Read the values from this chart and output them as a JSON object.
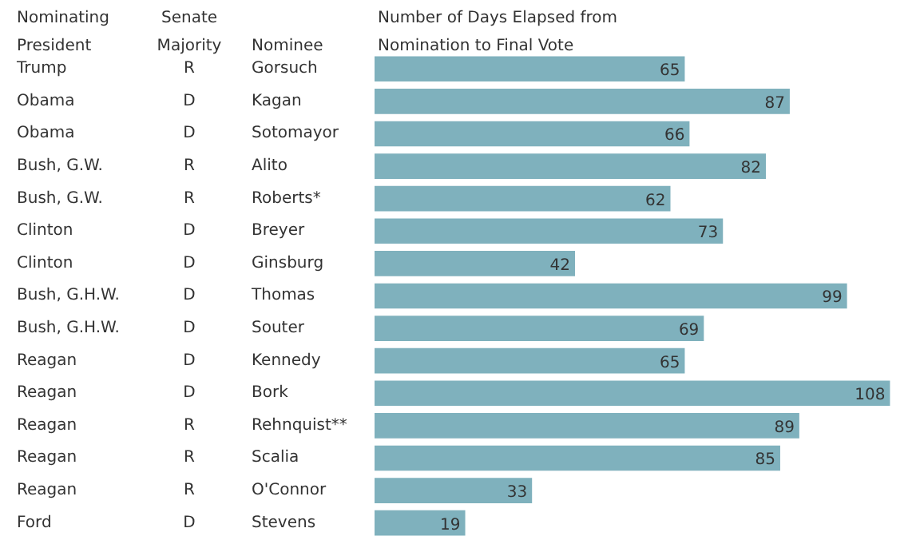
{
  "chart_data": {
    "type": "bar",
    "orientation": "horizontal",
    "ylabel": "Nominee",
    "xlabel": "Number of Days Elapsed from Nomination to Final Vote",
    "categories": [
      "Gorsuch",
      "Kagan",
      "Sotomayor",
      "Alito",
      "Roberts*",
      "Breyer",
      "Ginsburg",
      "Thomas",
      "Souter",
      "Kennedy",
      "Bork",
      "Rehnquist**",
      "Scalia",
      "O'Connor",
      "Stevens"
    ],
    "values": [
      65,
      87,
      66,
      82,
      62,
      73,
      42,
      99,
      69,
      65,
      108,
      89,
      85,
      33,
      19
    ],
    "color": "#7fb1bd",
    "data_labels": true,
    "grid": false,
    "annotations": [
      "Nominating President",
      "Senate Majority",
      "Trump",
      "R",
      "Obama",
      "D",
      "Obama",
      "D",
      "Bush, G.W.",
      "R",
      "Bush, G.W.",
      "R",
      "Clinton",
      "D",
      "Clinton",
      "D",
      "Bush, G.H.W.",
      "D",
      "Bush, G.H.W.",
      "D",
      "Reagan",
      "D",
      "Reagan",
      "D",
      "Reagan",
      "R",
      "Reagan",
      "R",
      "Reagan",
      "R",
      "Ford",
      "D"
    ]
  }
}
